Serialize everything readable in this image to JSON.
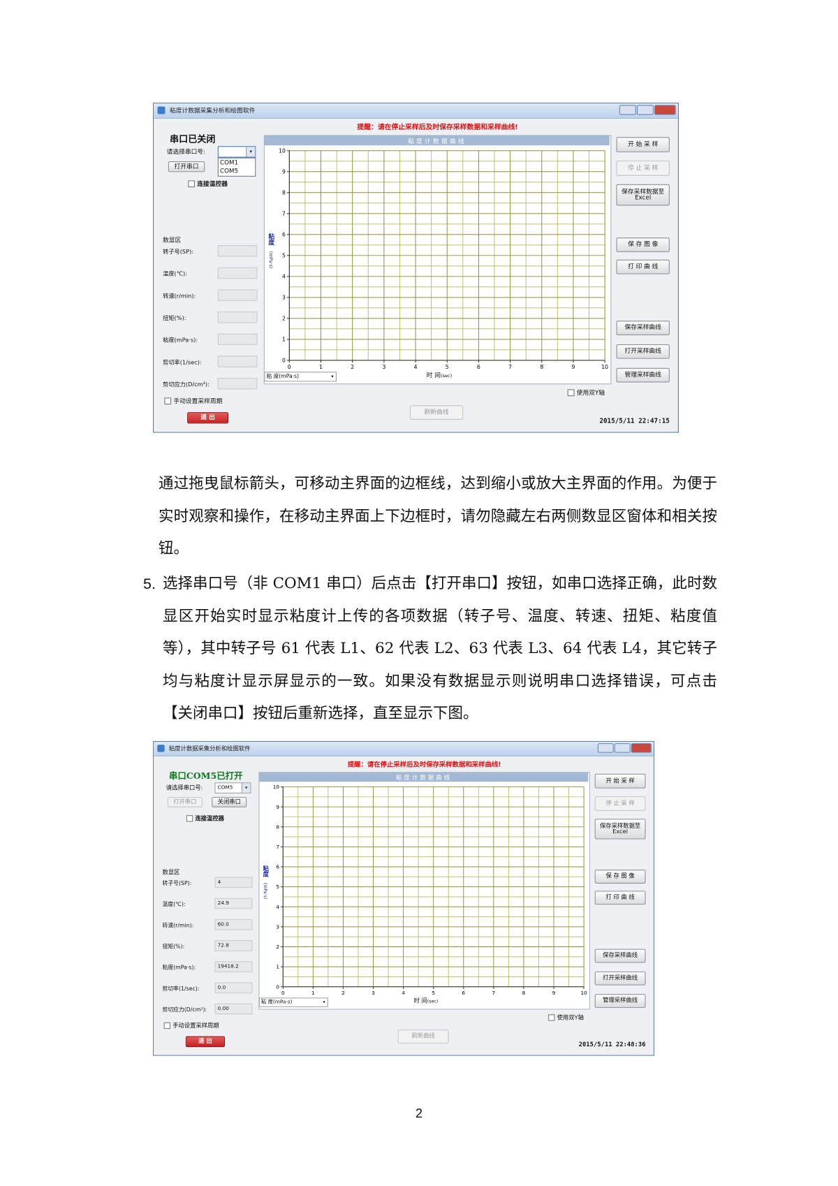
{
  "screenshots": [
    {
      "window_title": "粘度计数据采集分析和绘图软件",
      "warning": "提醒：请在停止采样后及时保存采样数据和采样曲线!",
      "port_status": "串口已关闭",
      "port_label": "请选择串口号:",
      "port_options": [
        "COM1",
        "COM5"
      ],
      "open_button": "打开串口",
      "controller_checkbox": "连接温控器",
      "data_area_title": "数显区",
      "fields": [
        {
          "label": "转子号(SP):"
        },
        {
          "label": "温度(℃):"
        },
        {
          "label": "转速(r/min):"
        },
        {
          "label": "扭矩(%):"
        },
        {
          "label": "粘度(mPa·s):"
        },
        {
          "label": "剪切率(1/sec):"
        },
        {
          "label": "剪切应力(D/cm²):"
        }
      ],
      "manual_period": "手动设置采样周期",
      "exit_button": "退 出",
      "plot": {
        "title": "粘度计数据曲线",
        "y_label": "粘度",
        "y_unit": "(mPa·s)",
        "x_label": "时 间",
        "x_unit": "(sec)",
        "xlim": [
          0,
          10
        ],
        "ylim": [
          0,
          10
        ],
        "xticks": [
          0,
          1,
          2,
          3,
          4,
          5,
          6,
          7,
          8,
          9,
          10
        ],
        "yticks": [
          0,
          1,
          2,
          3,
          4,
          5,
          6,
          7,
          8,
          9,
          10
        ]
      },
      "y_select": "粘 度(mPa·s)",
      "dual_axis": "使用双Y轴",
      "refresh_button": "刷新曲线",
      "buttons": [
        "开 始 采 样",
        "停 止 采 样",
        "保存采样数据至Excel",
        "保 存 图 像",
        "打 印 曲 线",
        "保存采样曲线",
        "打开采样曲线",
        "管理采样曲线"
      ],
      "timestamp": "2015/5/11 22:47:15"
    },
    {
      "window_title": "粘度计数据采集分析和绘图软件",
      "warning": "提醒：请在停止采样后及时保存采样数据和采样曲线!",
      "port_status": "串口COM5已打开",
      "port_label": "请选择串口号:",
      "port_selected": "COM5",
      "open_button": "打开串口",
      "close_button": "关闭串口",
      "controller_checkbox": "连接温控器",
      "data_area_title": "数显区",
      "fields": [
        {
          "label": "转子号(SP):",
          "value": "4"
        },
        {
          "label": "温度(℃):",
          "value": "24.9"
        },
        {
          "label": "转速(r/min):",
          "value": "60.0"
        },
        {
          "label": "扭矩(%):",
          "value": "72.8"
        },
        {
          "label": "粘度(mPa·s):",
          "value": "19418.2"
        },
        {
          "label": "剪切率(1/sec):",
          "value": "0.0"
        },
        {
          "label": "剪切应力(D/cm²):",
          "value": "0.00"
        }
      ],
      "manual_period": "手动设置采样周期",
      "exit_button": "退 出",
      "plot": {
        "title": "粘度计数据曲线",
        "y_label": "粘度",
        "y_unit": "(mPa·s)",
        "x_label": "时 间",
        "x_unit": "(sec)",
        "xlim": [
          0,
          10
        ],
        "ylim": [
          0,
          10
        ],
        "xticks": [
          0,
          1,
          2,
          3,
          4,
          5,
          6,
          7,
          8,
          9,
          10
        ],
        "yticks": [
          0,
          1,
          2,
          3,
          4,
          5,
          6,
          7,
          8,
          9,
          10
        ]
      },
      "y_select": "粘 度(mPa·s)",
      "dual_axis": "使用双Y轴",
      "refresh_button": "刷新曲线",
      "buttons": [
        "开 始 采 样",
        "停 止 采 样",
        "保存采样数据至Excel",
        "保 存 图 像",
        "打 印 曲 线",
        "保存采样曲线",
        "打开采样曲线",
        "管理采样曲线"
      ],
      "timestamp": "2015/5/11 22:48:36"
    }
  ],
  "paragraph": "通过拖曳鼠标箭头，可移动主界面的边框线，达到缩小或放大主界面的作用。为便于实时观察和操作，在移动主界面上下边框时，请勿隐藏左右两侧数显区窗体和相关按钮。",
  "list_item": {
    "number": "5.",
    "text": "选择串口号（非 COM1 串口）后点击【打开串口】按钮，如串口选择正确，此时数显区开始实时显示粘度计上传的各项数据（转子号、温度、转速、扭矩、粘度值等），其中转子号 61 代表 L1、62 代表 L2、63 代表 L3、64 代表 L4，其它转子均与粘度计显示屏显示的一致。如果没有数据显示则说明串口选择错误，可点击【关闭串口】按钮后重新选择，直至显示下图。"
  },
  "page_number": "2"
}
